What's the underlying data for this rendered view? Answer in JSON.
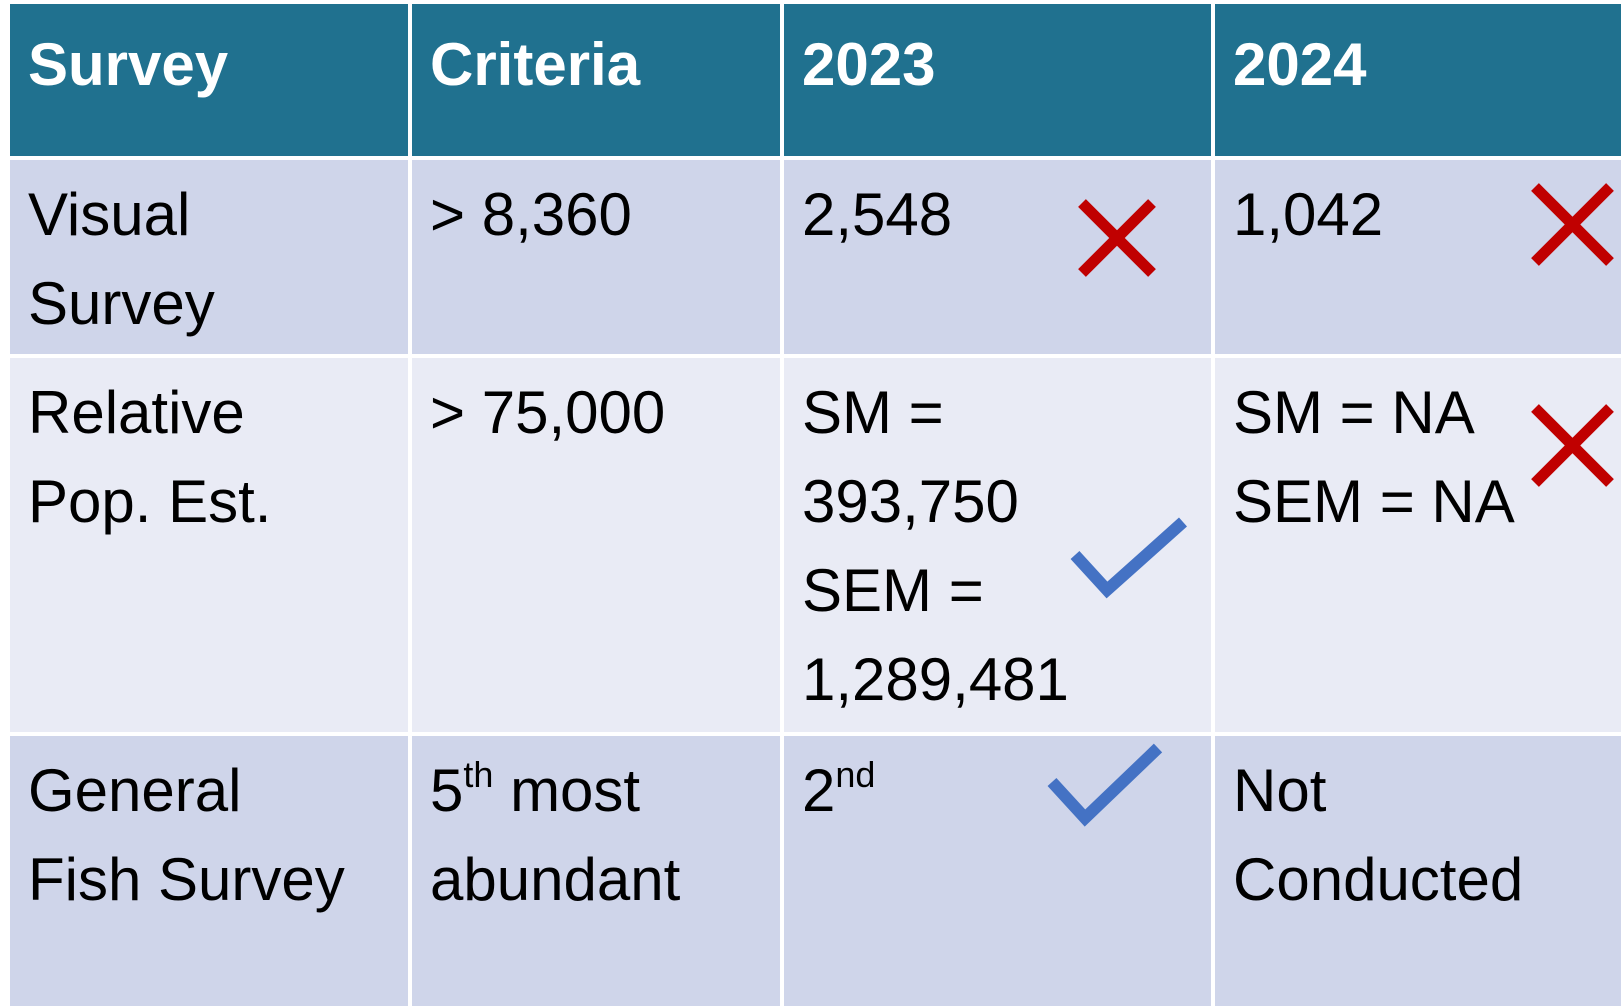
{
  "table": {
    "header": [
      "Survey",
      "Criteria",
      "2023",
      "2024"
    ],
    "rows": [
      [
        [
          "Visual",
          "Survey"
        ],
        [
          "> 8,360"
        ],
        [
          "2,548"
        ],
        [
          "1,042"
        ]
      ],
      [
        [
          "Relative",
          "Pop. Est."
        ],
        [
          "> 75,000"
        ],
        [
          "SM =",
          "393,750",
          "SEM =",
          "1,289,481"
        ],
        [
          "SM = NA",
          "SEM = NA"
        ]
      ],
      [
        [
          "General",
          "Fish Survey"
        ],
        [
          [
            "5",
            {
              "sup": "th"
            },
            " most"
          ],
          "abundant"
        ],
        [
          [
            "2",
            {
              "sup": "nd"
            }
          ]
        ],
        [
          "Not",
          "Conducted"
        ]
      ]
    ]
  }
}
